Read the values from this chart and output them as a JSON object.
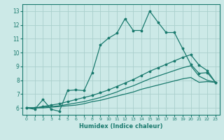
{
  "xlabel": "Humidex (Indice chaleur)",
  "ylabel": "",
  "bg_color": "#cce9e7",
  "grid_color": "#aacfcc",
  "line_color": "#1a7a6e",
  "xlim": [
    -0.5,
    23.5
  ],
  "ylim": [
    5.5,
    13.5
  ],
  "xticks": [
    0,
    1,
    2,
    3,
    4,
    5,
    6,
    7,
    8,
    9,
    10,
    11,
    12,
    13,
    14,
    15,
    16,
    17,
    18,
    19,
    20,
    21,
    22,
    23
  ],
  "yticks": [
    6,
    7,
    8,
    9,
    10,
    11,
    12,
    13
  ],
  "line1_x": [
    0,
    1,
    2,
    3,
    4,
    5,
    6,
    7,
    8,
    9,
    10,
    11,
    12,
    13,
    14,
    15,
    16,
    17,
    18,
    19,
    20,
    21,
    22,
    23
  ],
  "line1_y": [
    6.0,
    5.9,
    6.6,
    5.9,
    5.75,
    7.25,
    7.3,
    7.25,
    8.55,
    10.55,
    11.05,
    11.4,
    12.45,
    11.6,
    11.6,
    13.0,
    12.2,
    11.45,
    11.45,
    10.3,
    9.15,
    8.5,
    8.55,
    7.85
  ],
  "line2_x": [
    0,
    1,
    2,
    3,
    4,
    5,
    6,
    7,
    8,
    9,
    10,
    11,
    12,
    13,
    14,
    15,
    16,
    17,
    18,
    19,
    20,
    21,
    22,
    23
  ],
  "line2_y": [
    6.0,
    6.0,
    6.1,
    6.2,
    6.3,
    6.45,
    6.6,
    6.75,
    6.9,
    7.1,
    7.3,
    7.55,
    7.8,
    8.05,
    8.35,
    8.65,
    8.9,
    9.15,
    9.4,
    9.65,
    9.85,
    9.1,
    8.7,
    7.85
  ],
  "line3_x": [
    0,
    1,
    2,
    3,
    4,
    5,
    6,
    7,
    8,
    9,
    10,
    11,
    12,
    13,
    14,
    15,
    16,
    17,
    18,
    19,
    20,
    21,
    22,
    23
  ],
  "line3_y": [
    6.0,
    6.0,
    6.05,
    6.1,
    6.15,
    6.25,
    6.35,
    6.45,
    6.6,
    6.75,
    6.95,
    7.15,
    7.4,
    7.6,
    7.85,
    8.1,
    8.3,
    8.5,
    8.7,
    8.9,
    9.05,
    8.3,
    8.0,
    7.85
  ],
  "line4_x": [
    0,
    1,
    2,
    3,
    4,
    5,
    6,
    7,
    8,
    9,
    10,
    11,
    12,
    13,
    14,
    15,
    16,
    17,
    18,
    19,
    20,
    21,
    22,
    23
  ],
  "line4_y": [
    6.0,
    6.0,
    6.0,
    6.05,
    6.1,
    6.15,
    6.2,
    6.3,
    6.45,
    6.55,
    6.7,
    6.85,
    7.0,
    7.15,
    7.35,
    7.5,
    7.65,
    7.8,
    7.95,
    8.1,
    8.2,
    7.85,
    7.9,
    7.85
  ],
  "marker_size": 2.5,
  "line_width": 0.9
}
